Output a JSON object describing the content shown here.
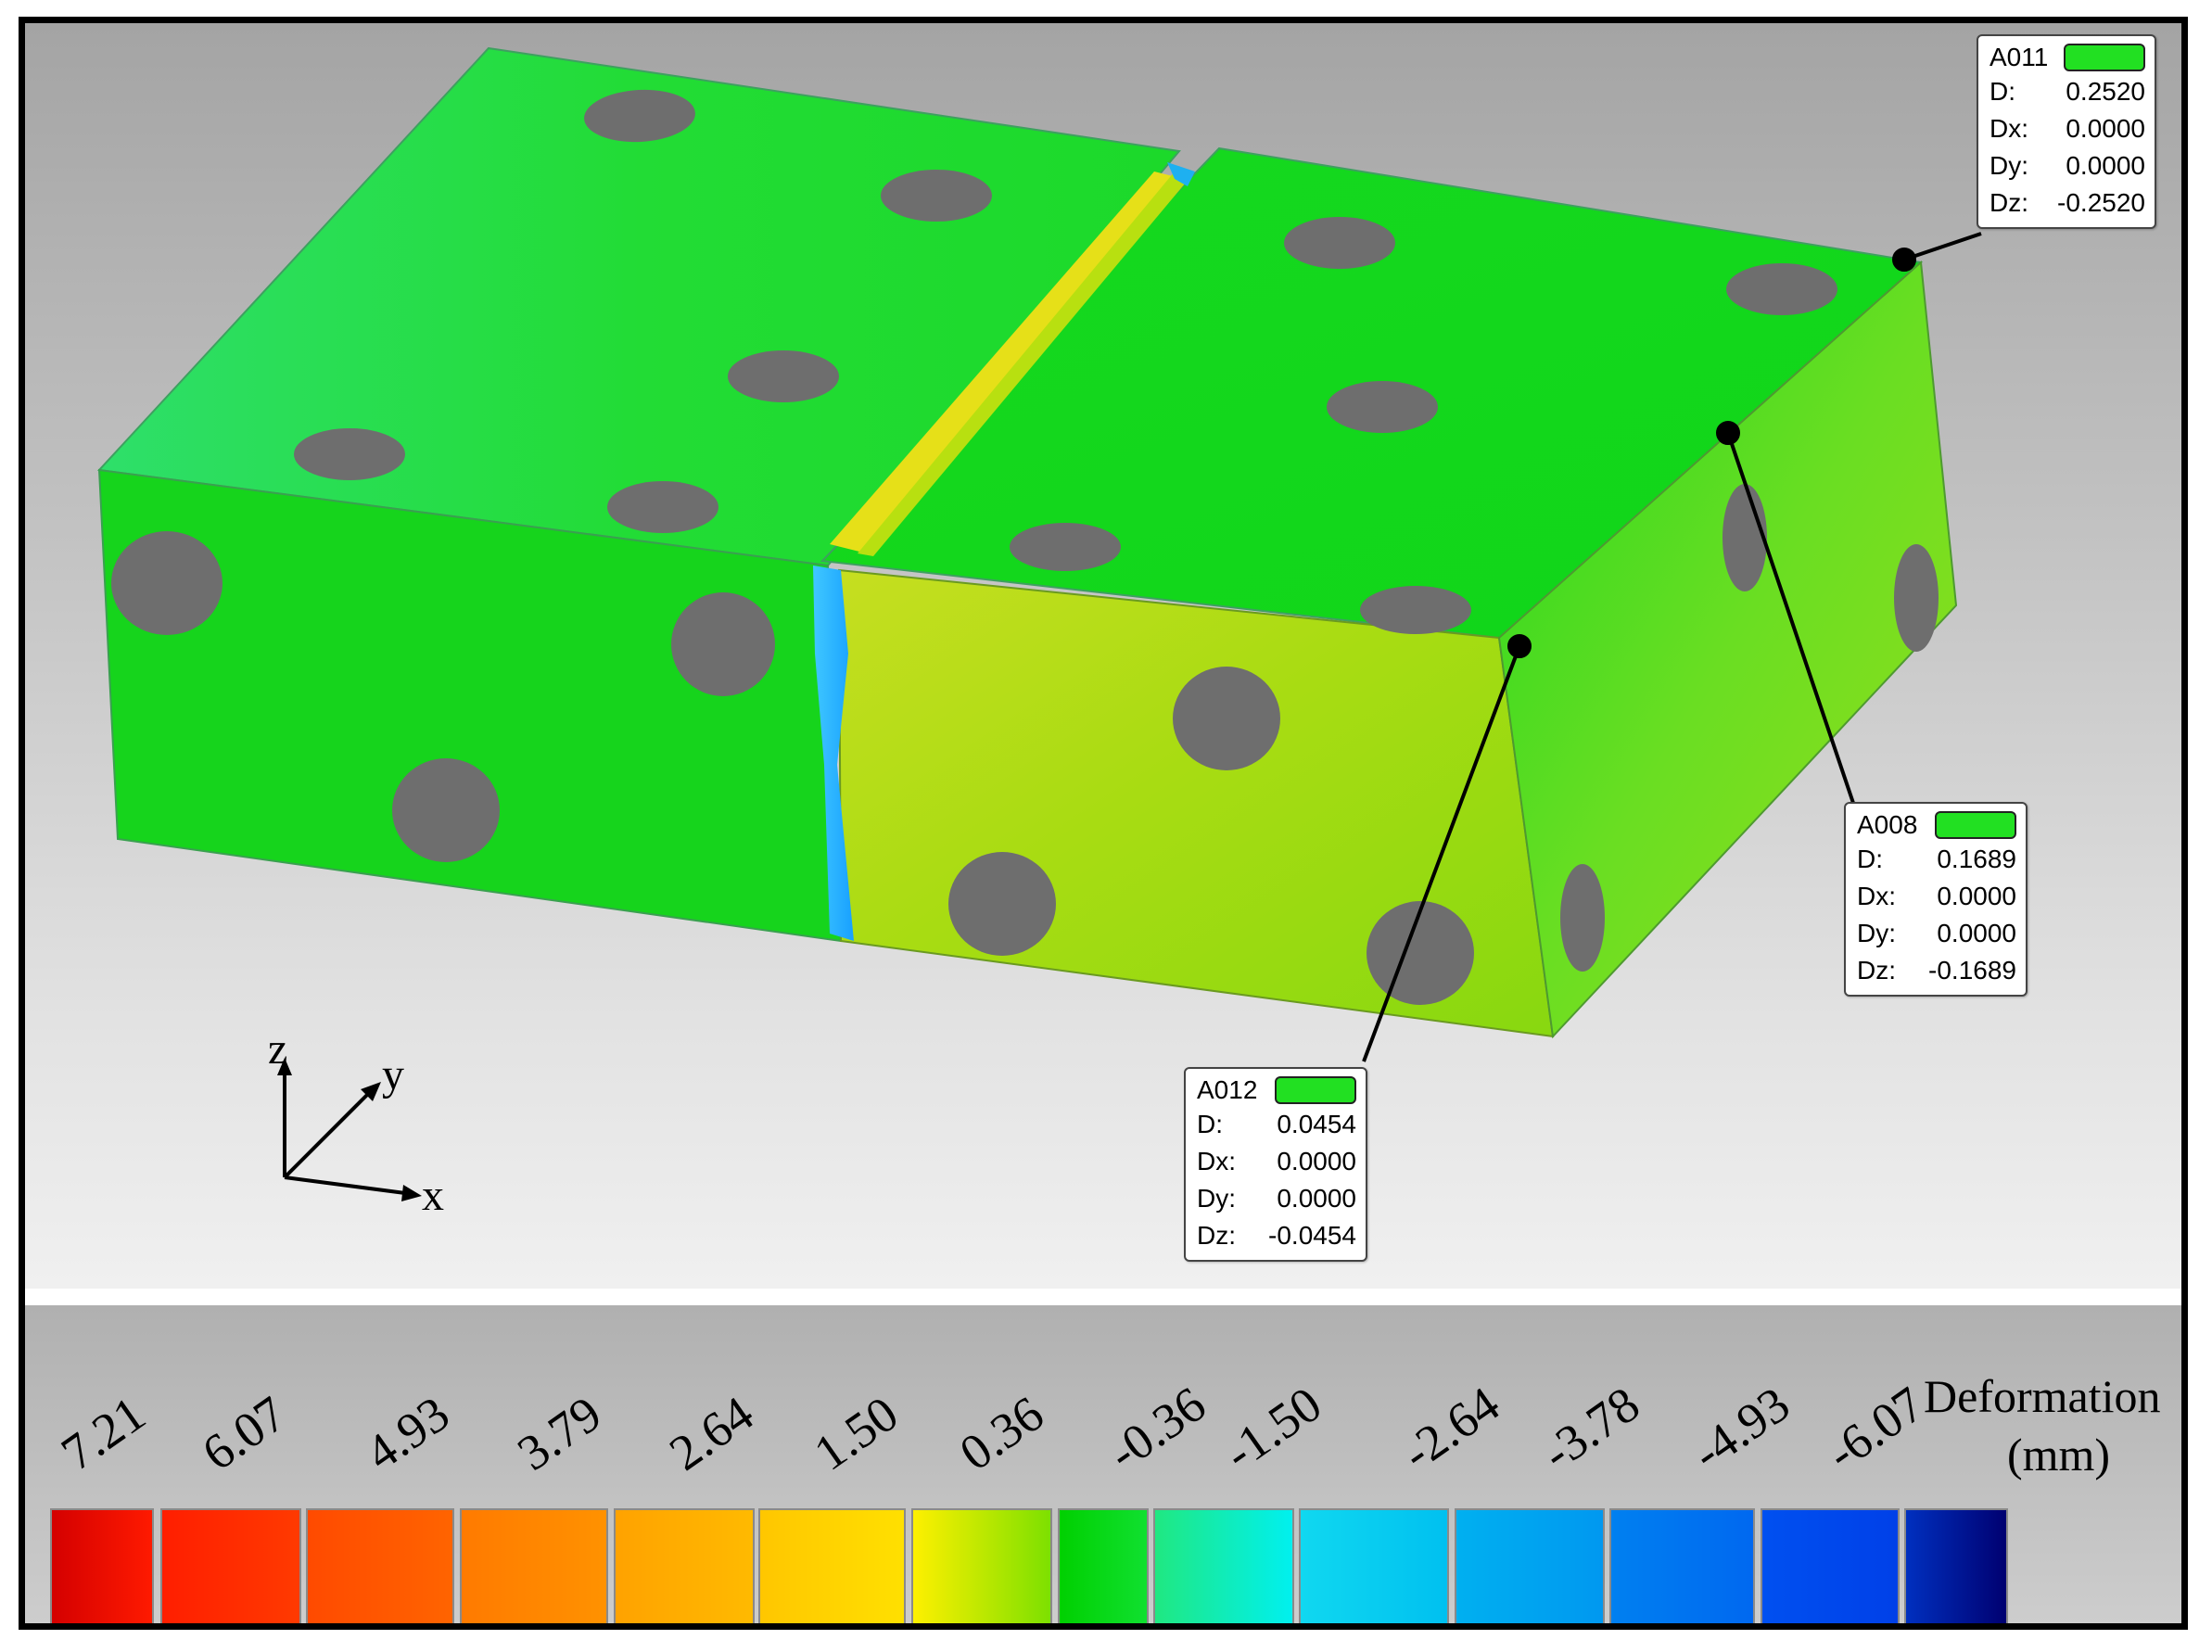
{
  "axes": {
    "z": "z",
    "y": "y",
    "x": "x"
  },
  "callouts": [
    {
      "id": "A011",
      "color": "#22e022",
      "rows": [
        {
          "k": "D:",
          "v": "0.2520"
        },
        {
          "k": "Dx:",
          "v": "0.0000"
        },
        {
          "k": "Dy:",
          "v": "0.0000"
        },
        {
          "k": "Dz:",
          "v": "-0.2520"
        }
      ]
    },
    {
      "id": "A008",
      "color": "#22e022",
      "rows": [
        {
          "k": "D:",
          "v": "0.1689"
        },
        {
          "k": "Dx:",
          "v": "0.0000"
        },
        {
          "k": "Dy:",
          "v": "0.0000"
        },
        {
          "k": "Dz:",
          "v": "-0.1689"
        }
      ]
    },
    {
      "id": "A012",
      "color": "#22e022",
      "rows": [
        {
          "k": "D:",
          "v": "0.0454"
        },
        {
          "k": "Dx:",
          "v": "0.0000"
        },
        {
          "k": "Dy:",
          "v": "0.0000"
        },
        {
          "k": "Dz:",
          "v": "-0.0454"
        }
      ]
    }
  ],
  "legend": {
    "title_line1": "Deformation",
    "title_line2": "(mm)",
    "ticks": [
      "7.21",
      "6.07",
      "4.93",
      "3.79",
      "2.64",
      "1.50",
      "0.36",
      "-0.36",
      "-1.50",
      "-2.64",
      "-3.78",
      "-4.93",
      "-6.07"
    ],
    "swatch_colors": [
      [
        "#d40000",
        "#ff1a00"
      ],
      [
        "#ff1e00",
        "#ff3a00"
      ],
      [
        "#ff4a00",
        "#ff6400"
      ],
      [
        "#ff7a00",
        "#ff9200"
      ],
      [
        "#ffa200",
        "#ffba00"
      ],
      [
        "#ffc600",
        "#ffe000"
      ],
      [
        "#fff000",
        "#7ce000"
      ],
      [
        "#00d000",
        "#10e030"
      ],
      [
        "#20e880",
        "#00f0f0"
      ],
      [
        "#10d8f0",
        "#00c0f0"
      ],
      [
        "#00b0f0",
        "#0098f0"
      ],
      [
        "#0080f0",
        "#0068f0"
      ],
      [
        "#0050f0",
        "#0040e8"
      ],
      [
        "#0030c0",
        "#000070"
      ]
    ]
  }
}
